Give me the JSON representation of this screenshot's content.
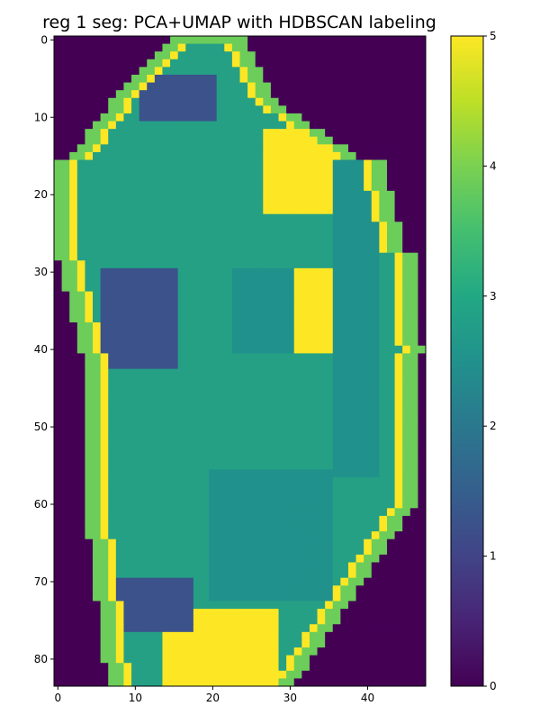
{
  "chart_data": {
    "type": "heatmap",
    "title": "reg 1 seg: PCA+UMAP with HDBSCAN labeling",
    "xlabel": "",
    "ylabel": "",
    "x_ticks": [
      0,
      10,
      20,
      30,
      40
    ],
    "y_ticks": [
      0,
      10,
      20,
      30,
      40,
      50,
      60,
      70,
      80
    ],
    "xlim": [
      -0.5,
      47.5
    ],
    "ylim": [
      83.5,
      -0.5
    ],
    "colorbar": {
      "ticks": [
        0,
        1,
        2,
        3,
        4,
        5
      ],
      "range": [
        0,
        5
      ],
      "colormap": "viridis"
    },
    "colors": {
      "0": "#440154",
      "1": "#3b528b",
      "2": "#21918c",
      "3": "#25a085",
      "4": "#6ccd5a",
      "5": "#fde725"
    },
    "grid_rows": 84,
    "grid_cols": 48,
    "cluster_layout_summary": {
      "background": 0,
      "outer_rim": 4,
      "inner_rim": 5,
      "core": 3,
      "patches": [
        1,
        2
      ]
    }
  }
}
